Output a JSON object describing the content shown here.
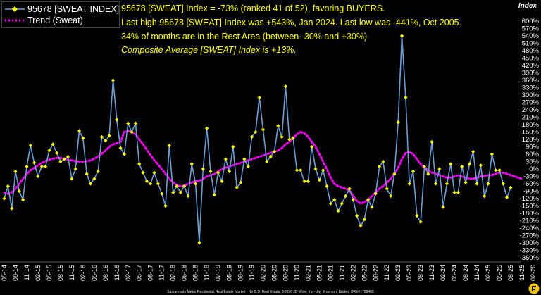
{
  "legend": {
    "series_label": "95678 [SWEAT INDEX]",
    "trend_label": "Trend (Sweat)"
  },
  "annotations": {
    "line1": "95678 [SWEAT] Index = -73% (ranked 41 of 52), favoring BUYERS.",
    "line2": "Last high 95678 [SWEAT] Index was +543%, Jan 2024. Last low was -441%, Oct 2005.",
    "line3": "34% of months are in the Rest Area (between -30% and +30%)",
    "line4": "Composite Average [SWEAT] Index is +13%."
  },
  "index_label": "Index",
  "footer": "Sacramento Metro Residential Real Estate Market - No B.S. Real Estate, ©2026 JD Wise, Inc - Jay Emerson, Broker, DRE#1788488",
  "colors": {
    "background": "#000000",
    "series_line": "#6a9fd4",
    "series_marker": "#ffff00",
    "trend": "#ff00ff",
    "text": "#ffffff",
    "annotation": "#ffff00"
  },
  "chart_data": {
    "type": "line",
    "ylim": [
      -360,
      600
    ],
    "ystep": 30,
    "y_tick_format": "percent",
    "x_tick_labels": [
      "05-14",
      "08-14",
      "11-14",
      "02-15",
      "05-15",
      "08-15",
      "11-15",
      "02-16",
      "05-16",
      "08-16",
      "11-16",
      "02-17",
      "05-17",
      "08-17",
      "11-17",
      "02-18",
      "05-18",
      "08-18",
      "11-18",
      "02-19",
      "05-19",
      "08-19",
      "11-19",
      "02-20",
      "05-20",
      "08-20",
      "11-20",
      "02-21",
      "05-21",
      "08-21",
      "11-21",
      "02-22",
      "05-22",
      "08-22",
      "11-22",
      "02-23",
      "05-23",
      "08-23",
      "11-23",
      "02-24",
      "05-24",
      "08-24",
      "11-24",
      "02-25",
      "05-25",
      "08-25",
      "11-25",
      "02-26",
      "05-26"
    ],
    "x_start": "2014-05",
    "grid": false,
    "legend_position": "top-left",
    "series": [
      {
        "name": "95678 [SWEAT INDEX]",
        "values": [
          -120,
          -70,
          -160,
          -10,
          -90,
          -125,
          10,
          95,
          25,
          -30,
          10,
          10,
          75,
          100,
          65,
          30,
          40,
          50,
          -40,
          0,
          155,
          125,
          -20,
          -60,
          -40,
          -10,
          130,
          115,
          135,
          360,
          200,
          85,
          60,
          185,
          150,
          185,
          20,
          -15,
          -50,
          -60,
          -15,
          -60,
          -100,
          -150,
          95,
          -95,
          -70,
          -95,
          -70,
          -110,
          20,
          -60,
          -300,
          0,
          165,
          -10,
          -105,
          -15,
          -50,
          40,
          -10,
          90,
          -75,
          -55,
          40,
          10,
          130,
          150,
          290,
          160,
          30,
          50,
          70,
          175,
          130,
          335,
          120,
          125,
          -5,
          -5,
          -50,
          -50,
          90,
          0,
          -45,
          -5,
          -70,
          -140,
          -125,
          -170,
          -140,
          -110,
          -80,
          -125,
          -190,
          -230,
          -205,
          -125,
          -155,
          -100,
          10,
          30,
          -80,
          -110,
          -20,
          190,
          540,
          290,
          -60,
          -10,
          -190,
          -215,
          10,
          -20,
          110,
          -60,
          0,
          -155,
          -60,
          20,
          -95,
          -95,
          10,
          -55,
          20,
          70,
          -60,
          15,
          -110,
          -60,
          60,
          -5,
          -5,
          -60,
          -115,
          -75
        ],
        "marker": "diamond"
      },
      {
        "name": "Trend (Sweat)",
        "values": [
          -95,
          -100,
          -95,
          -80,
          -60,
          -40,
          -20,
          -5,
          5,
          15,
          25,
          32,
          38,
          42,
          45,
          45,
          42,
          38,
          35,
          32,
          30,
          30,
          32,
          35,
          42,
          50,
          62,
          75,
          90,
          100,
          105,
          110,
          150,
          155,
          150,
          140,
          120,
          100,
          78,
          56,
          36,
          18,
          0,
          -20,
          -40,
          -55,
          -65,
          -70,
          -68,
          -60,
          -55,
          -50,
          -48,
          -40,
          -30,
          -25,
          -20,
          -10,
          0,
          5,
          10,
          15,
          20,
          25,
          30,
          35,
          40,
          45,
          50,
          55,
          60,
          65,
          70,
          75,
          85,
          100,
          110,
          125,
          140,
          150,
          145,
          130,
          110,
          90,
          60,
          30,
          0,
          -35,
          -60,
          -70,
          -75,
          -80,
          -85,
          -110,
          -130,
          -140,
          -135,
          -125,
          -110,
          -95,
          -80,
          -70,
          -55,
          -40,
          -20,
          5,
          40,
          65,
          70,
          60,
          40,
          20,
          5,
          -5,
          -15,
          -20,
          -25,
          -30,
          -35,
          -35,
          -30,
          -25,
          -30,
          -35,
          -40,
          -40,
          -35,
          -30,
          -28,
          -25,
          -25,
          -20,
          -15,
          -15,
          -20,
          -25,
          -30,
          -35,
          -40
        ],
        "style": "dotted"
      }
    ]
  }
}
